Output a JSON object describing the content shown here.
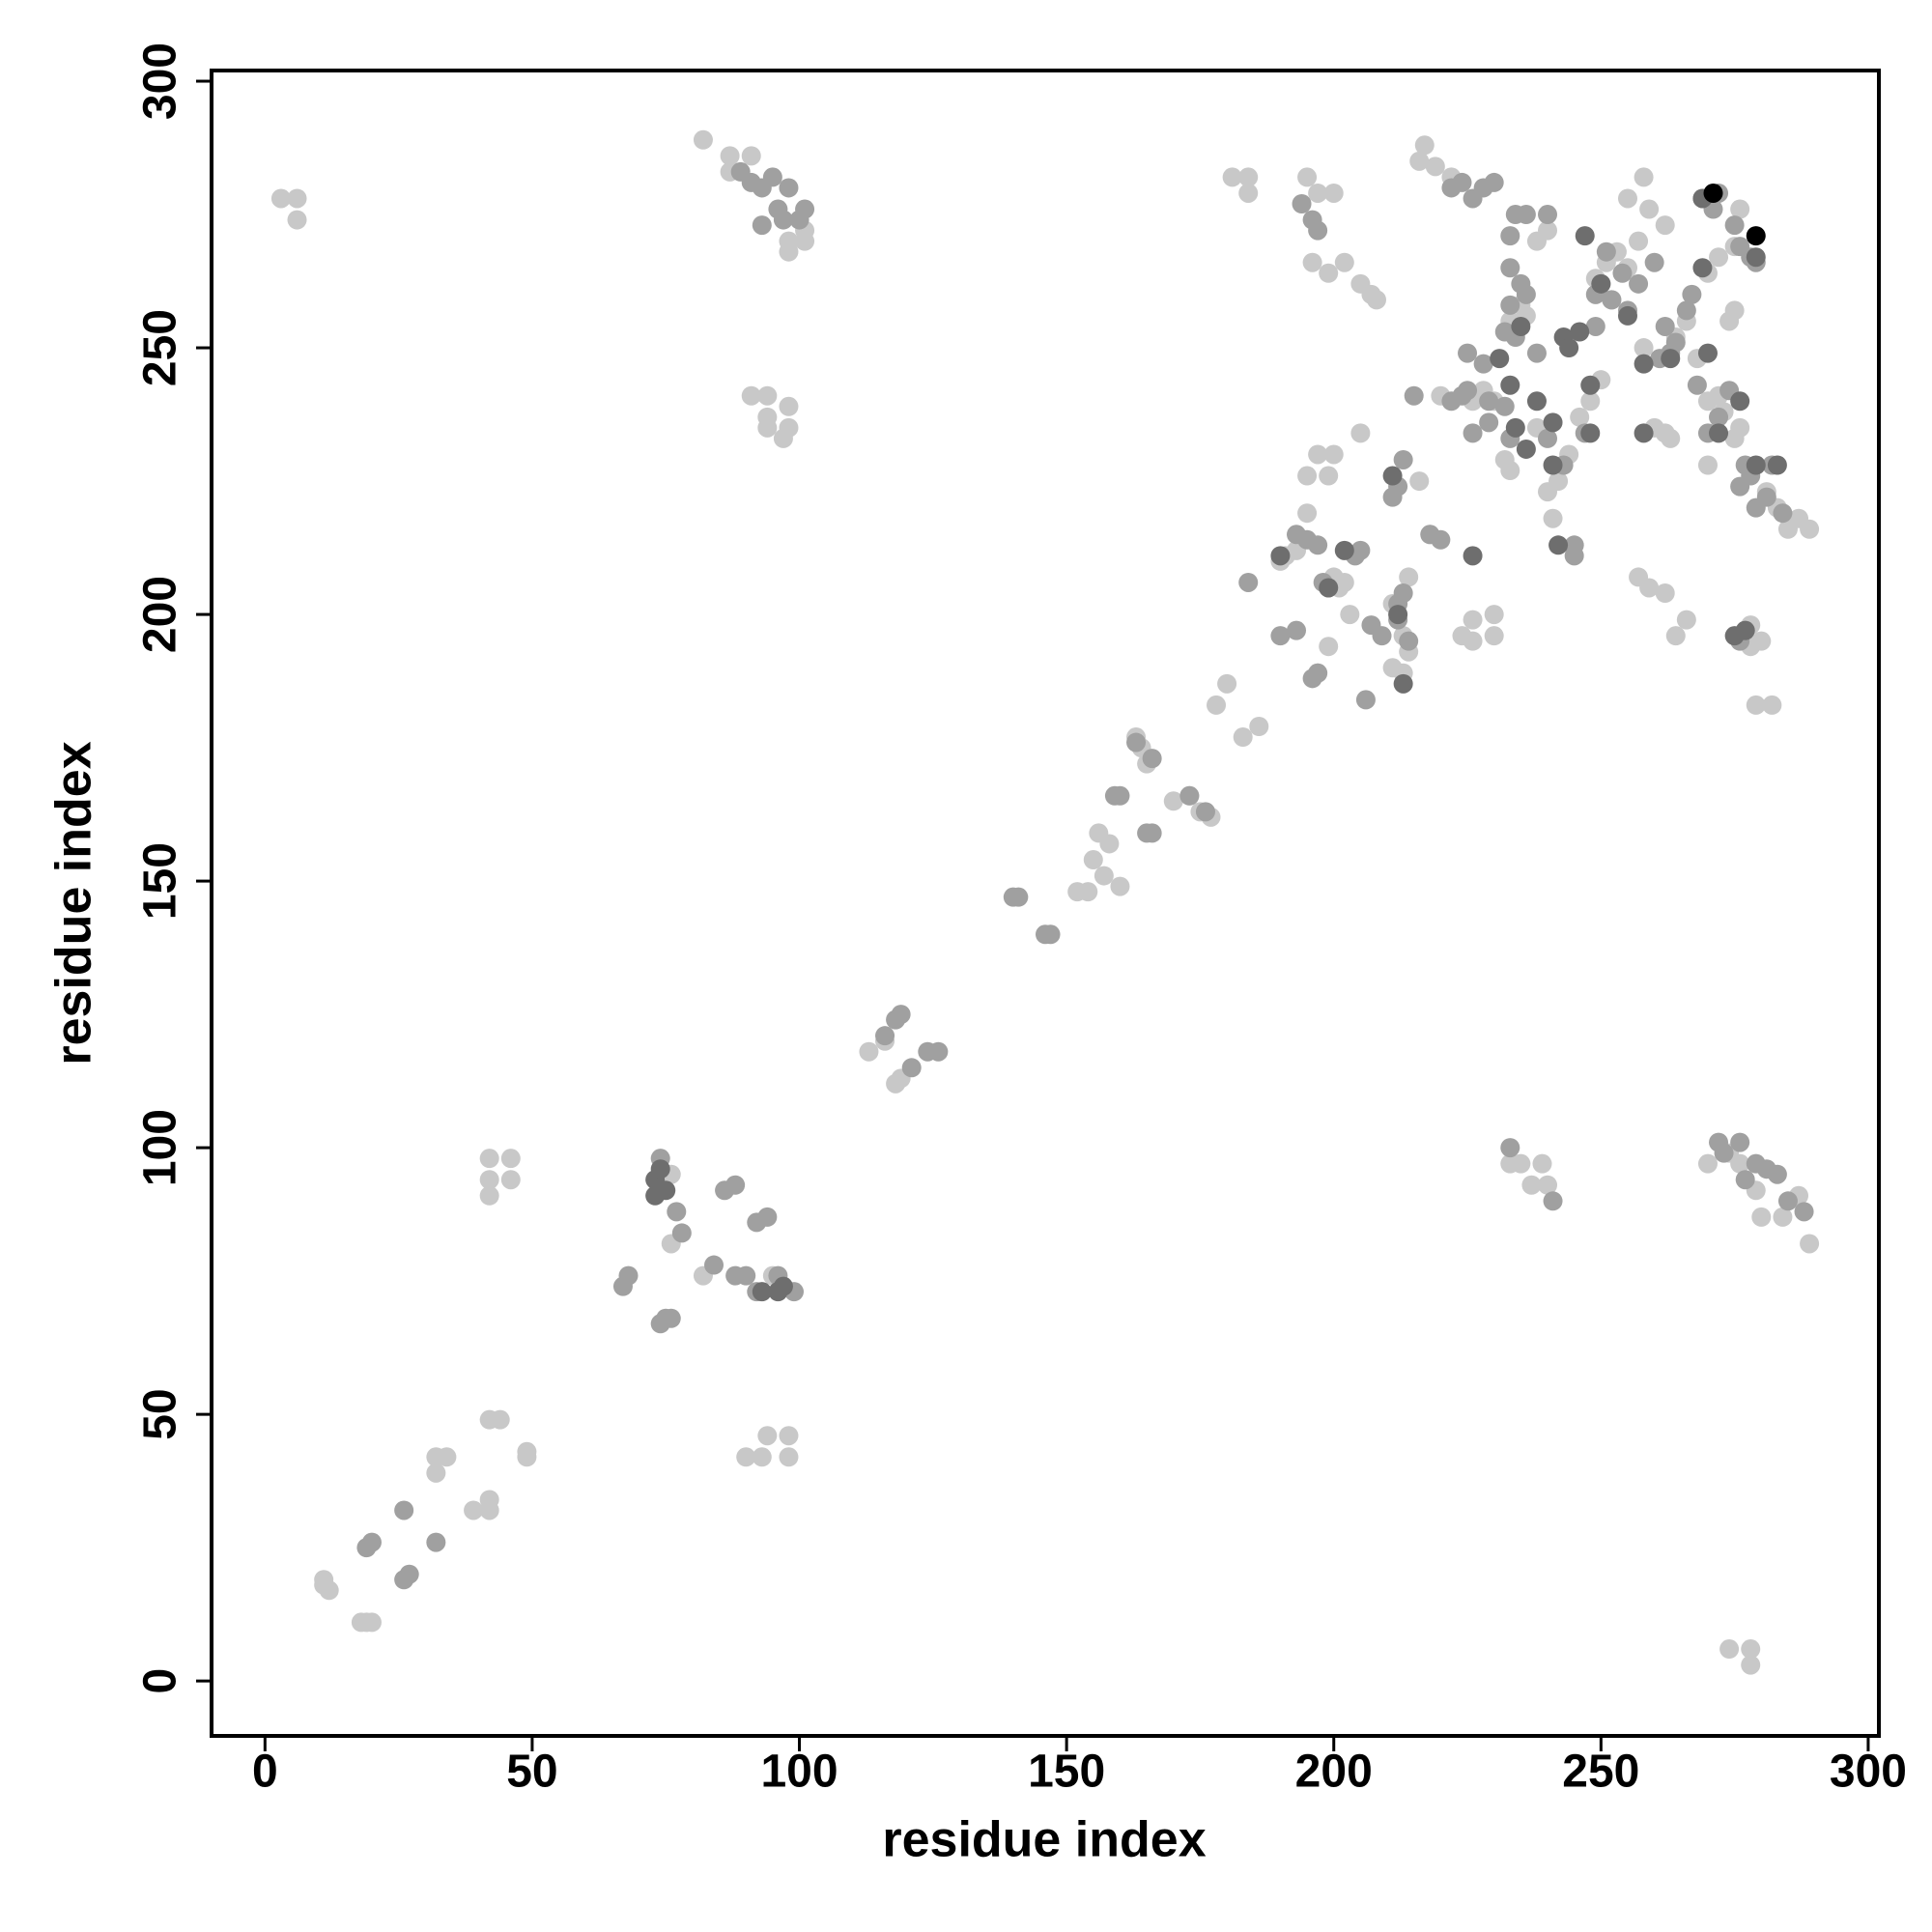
{
  "chart_data": {
    "type": "scatter",
    "xlabel": "residue index",
    "ylabel": "residue index",
    "xlim": [
      -10,
      302
    ],
    "ylim": [
      -10.3,
      302
    ],
    "xticks": [
      0,
      50,
      100,
      150,
      200,
      250,
      300
    ],
    "yticks": [
      0,
      50,
      100,
      150,
      200,
      250,
      300
    ],
    "series": [
      {
        "color": "#c8c8c8",
        "x": [
          3,
          6,
          6,
          11,
          11,
          12,
          18,
          19,
          20,
          32,
          32,
          34,
          39,
          42,
          42,
          42,
          44,
          49,
          49,
          42,
          42,
          42,
          46,
          46,
          76,
          76,
          82,
          90,
          93,
          94,
          98,
          98,
          95,
          82,
          87,
          87,
          91,
          98,
          98,
          101,
          101,
          91,
          94,
          94,
          94,
          98,
          98,
          97,
          113,
          116,
          118,
          119,
          152,
          154,
          155,
          156,
          158,
          157,
          160,
          163,
          164,
          165,
          170,
          173,
          175,
          177,
          178,
          180,
          183,
          186,
          181,
          184,
          184,
          195,
          197,
          200,
          195,
          197,
          200,
          199,
          196,
          199,
          202,
          205,
          207,
          208,
          202,
          200,
          193,
          191,
          190,
          195,
          197,
          199,
          201,
          203,
          205,
          211,
          211,
          213,
          214,
          213,
          214,
          216,
          218,
          220,
          216,
          217,
          219,
          222,
          224,
          226,
          226,
          230,
          230,
          232,
          233,
          226,
          228,
          230,
          233,
          235,
          236,
          238,
          240,
          241,
          238,
          240,
          242,
          244,
          246,
          248,
          250,
          249,
          251,
          253,
          255,
          257,
          252,
          258,
          255,
          259,
          262,
          258,
          260,
          262,
          263,
          257,
          259,
          262,
          264,
          266,
          264,
          266,
          268,
          270,
          272,
          273,
          276,
          274,
          275,
          270,
          272,
          275,
          276,
          278,
          278,
          280,
          279,
          282,
          281,
          283,
          285,
          287,
          289,
          270,
          275,
          274,
          276,
          270,
          279,
          280,
          284,
          287,
          289,
          235,
          237,
          239,
          240,
          233,
          274,
          278,
          278
        ],
        "values": [
          278,
          278,
          274,
          18,
          19,
          17,
          11,
          11,
          11,
          42,
          39,
          42,
          32,
          32,
          34,
          49,
          49,
          42,
          43,
          98,
          94,
          91,
          98,
          94,
          95,
          82,
          76,
          42,
          42,
          46,
          46,
          42,
          76,
          289,
          286,
          283,
          286,
          270,
          268,
          270,
          272,
          241,
          241,
          237,
          235,
          239,
          235,
          233,
          118,
          120,
          112,
          113,
          148,
          148,
          154,
          159,
          157,
          151,
          149,
          177,
          175,
          172,
          165,
          166,
          163,
          162,
          183,
          187,
          177,
          179,
          282,
          282,
          279,
          282,
          279,
          279,
          226,
          230,
          230,
          226,
          266,
          264,
          266,
          262,
          260,
          259,
          206,
          207,
          212,
          211,
          210,
          219,
          189,
          194,
          205,
          200,
          234,
          202,
          190,
          189,
          193,
          196,
          207,
          225,
          215,
          241,
          285,
          288,
          284,
          282,
          196,
          195,
          199,
          200,
          196,
          229,
          227,
          240,
          242,
          240,
          255,
          258,
          256,
          270,
          272,
          218,
          235,
          223,
          225,
          230,
          237,
          240,
          244,
          263,
          266,
          268,
          265,
          270,
          259,
          282,
          278,
          276,
          273,
          250,
          235,
          234,
          233,
          207,
          205,
          204,
          196,
          199,
          252,
          255,
          248,
          240,
          241,
          238,
          235,
          255,
          257,
          264,
          267,
          269,
          276,
          198,
          194,
          195,
          183,
          183,
          223,
          220,
          216,
          218,
          216,
          228,
          233,
          99,
          97,
          97,
          92,
          87,
          87,
          91,
          82,
          97,
          93,
          97,
          93,
          97,
          6,
          6,
          3
        ]
      },
      {
        "color": "#a0a0a0",
        "x": [
          19,
          20,
          26,
          27,
          26,
          32,
          67,
          68,
          74,
          75,
          76,
          77,
          78,
          84,
          86,
          88,
          88,
          90,
          92,
          92,
          94,
          96,
          99,
          74,
          89,
          91,
          93,
          95,
          96,
          98,
          101,
          93,
          97,
          100,
          116,
          118,
          119,
          121,
          124,
          126,
          140,
          141,
          146,
          147,
          159,
          160,
          165,
          166,
          163,
          166,
          173,
          176,
          184,
          190,
          193,
          196,
          197,
          193,
          195,
          197,
          194,
          196,
          197,
          198,
          199,
          204,
          205,
          207,
          209,
          206,
          212,
          212,
          213,
          214,
          211,
          212,
          213,
          215,
          218,
          220,
          222,
          224,
          225,
          225,
          226,
          228,
          229,
          229,
          232,
          233,
          233,
          233,
          235,
          236,
          233,
          234,
          236,
          240,
          238,
          240,
          243,
          245,
          245,
          247,
          249,
          249,
          250,
          251,
          252,
          254,
          255,
          257,
          260,
          261,
          262,
          263,
          264,
          266,
          267,
          268,
          270,
          272,
          274,
          276,
          277,
          278,
          279,
          281,
          282,
          284,
          269,
          272,
          271,
          275,
          276,
          278,
          279,
          222,
          224,
          226,
          228,
          230,
          232,
          234,
          276,
          277,
          279,
          281,
          283,
          285,
          288,
          272,
          273,
          276,
          233,
          241
        ],
        "values": [
          25,
          26,
          19,
          20,
          32,
          26,
          74,
          76,
          67,
          68,
          68,
          88,
          84,
          78,
          92,
          93,
          76,
          76,
          73,
          86,
          87,
          76,
          73,
          98,
          283,
          281,
          280,
          282,
          276,
          280,
          276,
          273,
          274,
          274,
          121,
          124,
          125,
          115,
          118,
          118,
          147,
          147,
          140,
          140,
          166,
          166,
          159,
          159,
          176,
          173,
          166,
          163,
          206,
          196,
          197,
          188,
          189,
          215,
          214,
          213,
          277,
          274,
          272,
          206,
          205,
          211,
          212,
          198,
          196,
          184,
          199,
          202,
          204,
          195,
          222,
          224,
          229,
          241,
          215,
          214,
          240,
          241,
          242,
          249,
          234,
          247,
          240,
          236,
          239,
          233,
          258,
          265,
          262,
          260,
          271,
          275,
          275,
          275,
          249,
          233,
          228,
          211,
          213,
          234,
          254,
          260,
          262,
          268,
          259,
          264,
          257,
          262,
          266,
          248,
          254,
          249,
          251,
          257,
          260,
          243,
          234,
          237,
          242,
          224,
          228,
          226,
          220,
          222,
          228,
          219,
          278,
          279,
          276,
          273,
          269,
          267,
          266,
          280,
          281,
          278,
          280,
          281,
          253,
          252,
          195,
          94,
          97,
          96,
          95,
          90,
          88,
          101,
          99,
          101,
          100,
          90
        ]
      },
      {
        "color": "#6e6e6e",
        "x": [
          73,
          73,
          74,
          75,
          93,
          96,
          97,
          190,
          199,
          202,
          211,
          212,
          213,
          226,
          233,
          234,
          236,
          238,
          241,
          243,
          244,
          246,
          248,
          247,
          250,
          255,
          258,
          263,
          269,
          270,
          275,
          279,
          277,
          276,
          283,
          231,
          242,
          279,
          269,
          272,
          241,
          248,
          235,
          258
        ],
        "values": [
          94,
          91,
          96,
          92,
          73,
          73,
          74,
          211,
          205,
          212,
          226,
          200,
          187,
          211,
          243,
          235,
          231,
          240,
          236,
          252,
          250,
          253,
          243,
          271,
          262,
          256,
          247,
          248,
          278,
          249,
          196,
          228,
          197,
          240,
          228,
          248,
          213,
          267,
          265,
          234,
          228,
          234,
          254,
          234
        ]
      },
      {
        "color": "#000000",
        "x": [
          271,
          279
        ],
        "values": [
          279,
          271
        ]
      }
    ]
  }
}
